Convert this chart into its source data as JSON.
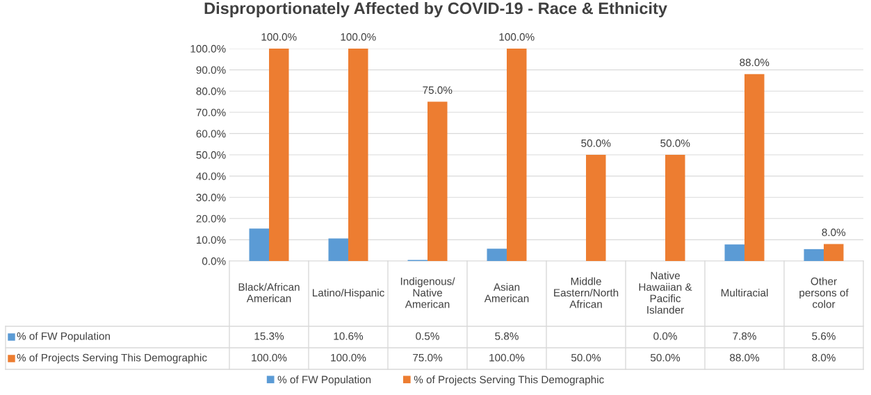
{
  "chart_data": {
    "type": "bar",
    "title": "Disproportionately Affected by COVID-19 - Race & Ethnicity",
    "categories": [
      "Black/African\nAmerican",
      "Latino/Hispanic",
      "Indigenous/\nNative\nAmerican",
      "Asian\nAmerican",
      "Middle\nEastern/North\nAfrican",
      "Native\nHawaiian &\nPacific\nIslander",
      "Multiracial",
      "Other\npersons of\ncolor"
    ],
    "series": [
      {
        "name": "% of FW Population",
        "color": "#5b9bd5",
        "values": [
          15.3,
          10.6,
          0.5,
          5.8,
          null,
          0.0,
          7.8,
          5.6
        ],
        "value_labels": [
          "15.3%",
          "10.6%",
          "0.5%",
          "5.8%",
          null,
          "0.0%",
          "7.8%",
          "5.6%"
        ]
      },
      {
        "name": "% of Projects Serving This Demographic",
        "color": "#ed7d31",
        "values": [
          100.0,
          100.0,
          75.0,
          100.0,
          50.0,
          50.0,
          88.0,
          8.0
        ],
        "value_labels": [
          "100.0%",
          "100.0%",
          "75.0%",
          "100.0%",
          "50.0%",
          "50.0%",
          "88.0%",
          "8.0%"
        ]
      }
    ],
    "ylim": [
      0,
      100
    ],
    "yticks": [
      {
        "value": 0,
        "label": "0.0%"
      },
      {
        "value": 10,
        "label": "10.0%"
      },
      {
        "value": 20,
        "label": "20.0%"
      },
      {
        "value": 30,
        "label": "30.0%"
      },
      {
        "value": 40,
        "label": "40.0%"
      },
      {
        "value": 50,
        "label": "50.0%"
      },
      {
        "value": 60,
        "label": "60.0%"
      },
      {
        "value": 70,
        "label": "70.0%"
      },
      {
        "value": 80,
        "label": "80.0%"
      },
      {
        "value": 90,
        "label": "90.0%"
      },
      {
        "value": 100,
        "label": "100.0%"
      }
    ],
    "grid": "y",
    "legend": "bottom"
  }
}
